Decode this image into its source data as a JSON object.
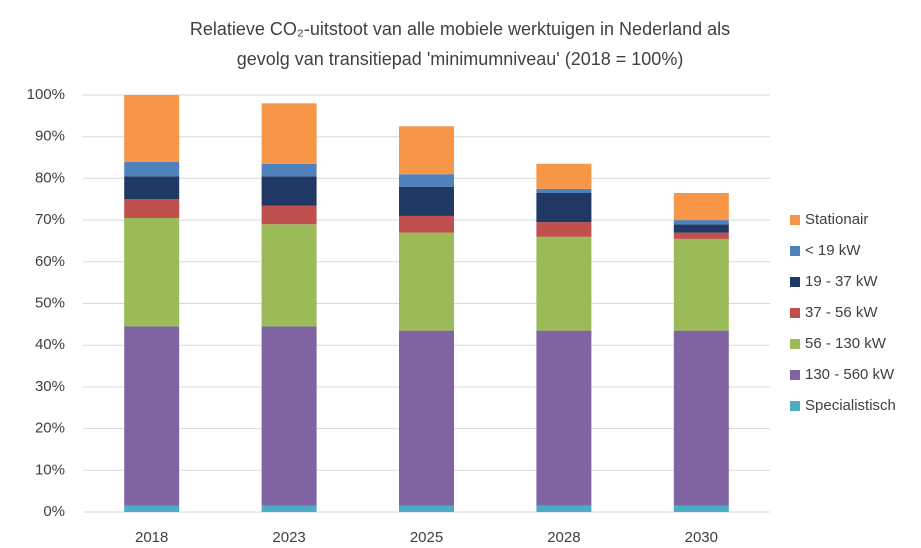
{
  "chart_data": {
    "type": "stacked_bar",
    "title": [
      "Relatieve CO₂-uitstoot van alle mobiele werktuigen in Nederland als",
      "gevolg van transitiepad 'minimumniveau' (2018 = 100%)"
    ],
    "categories": [
      "2018",
      "2023",
      "2025",
      "2028",
      "2030"
    ],
    "series": [
      {
        "name": "Specialistisch",
        "color": "#4bacc6",
        "values": [
          1.5,
          1.5,
          1.5,
          1.5,
          1.5
        ]
      },
      {
        "name": "130 - 560 kW",
        "color": "#8064a2",
        "values": [
          43,
          43,
          42,
          42,
          42
        ]
      },
      {
        "name": "56 - 130 kW",
        "color": "#9bbb59",
        "values": [
          26,
          24.5,
          23.5,
          22.5,
          22
        ]
      },
      {
        "name": "37 - 56 kW",
        "color": "#c0504d",
        "values": [
          4.5,
          4.5,
          4,
          3.5,
          1.5
        ]
      },
      {
        "name": "19 - 37 kW",
        "color": "#1f3864",
        "values": [
          5.5,
          7,
          7,
          7,
          2
        ]
      },
      {
        "name": "< 19 kW",
        "color": "#4f81bd",
        "values": [
          3.5,
          3,
          3,
          1,
          1
        ]
      },
      {
        "name": "Stationair",
        "color": "#f79646",
        "values": [
          16,
          14.5,
          11.5,
          6,
          6.5
        ]
      }
    ],
    "ylim": [
      0,
      100
    ],
    "yticks": [
      {
        "value": 0,
        "label": "0%"
      },
      {
        "value": 10,
        "label": "10%"
      },
      {
        "value": 20,
        "label": "20%"
      },
      {
        "value": 30,
        "label": "30%"
      },
      {
        "value": 40,
        "label": "40%"
      },
      {
        "value": 50,
        "label": "50%"
      },
      {
        "value": 60,
        "label": "60%"
      },
      {
        "value": 70,
        "label": "70%"
      },
      {
        "value": 80,
        "label": "80%"
      },
      {
        "value": 90,
        "label": "90%"
      },
      {
        "value": 100,
        "label": "100%"
      }
    ],
    "grid": true,
    "legend": "right"
  }
}
